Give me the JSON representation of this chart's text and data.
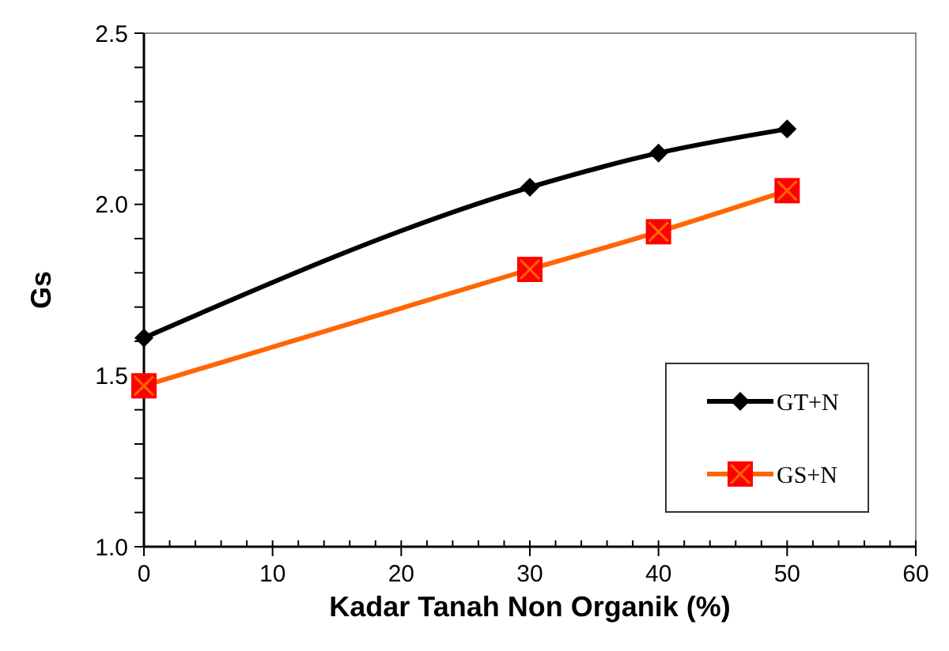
{
  "chart_data": {
    "type": "line",
    "xlabel": "Kadar Tanah Non Organik (%)",
    "ylabel": "Gs",
    "x": [
      0,
      30,
      40,
      50
    ],
    "series": [
      {
        "name": "GT+N",
        "color": "#000000",
        "marker": "diamond",
        "values": [
          1.61,
          2.05,
          2.15,
          2.22
        ]
      },
      {
        "name": "GS+N",
        "color": "#ff6600",
        "marker": "cross",
        "values": [
          1.47,
          1.81,
          1.92,
          2.04
        ]
      }
    ],
    "xlim": [
      0,
      60
    ],
    "xticks": [
      0,
      10,
      20,
      30,
      40,
      50,
      60
    ],
    "ylim": [
      1.0,
      2.5
    ],
    "yticks": [
      {
        "value": 1.0,
        "label": "1.0"
      },
      {
        "value": 1.1,
        "label": null
      },
      {
        "value": 1.2,
        "label": null
      },
      {
        "value": 1.3,
        "label": null
      },
      {
        "value": 1.4,
        "label": null
      },
      {
        "value": 1.5,
        "label": "1.5"
      },
      {
        "value": 1.6,
        "label": null
      },
      {
        "value": 1.7,
        "label": null
      },
      {
        "value": 1.8,
        "label": null
      },
      {
        "value": 1.9,
        "label": null
      },
      {
        "value": 2.0,
        "label": "2.0"
      },
      {
        "value": 2.1,
        "label": null
      },
      {
        "value": 2.2,
        "label": null
      },
      {
        "value": 2.3,
        "label": null
      },
      {
        "value": 2.4,
        "label": null
      },
      {
        "value": 2.5,
        "label": "2.5"
      }
    ],
    "grid": false,
    "legend": "bottom right",
    "line_style": "solid"
  }
}
